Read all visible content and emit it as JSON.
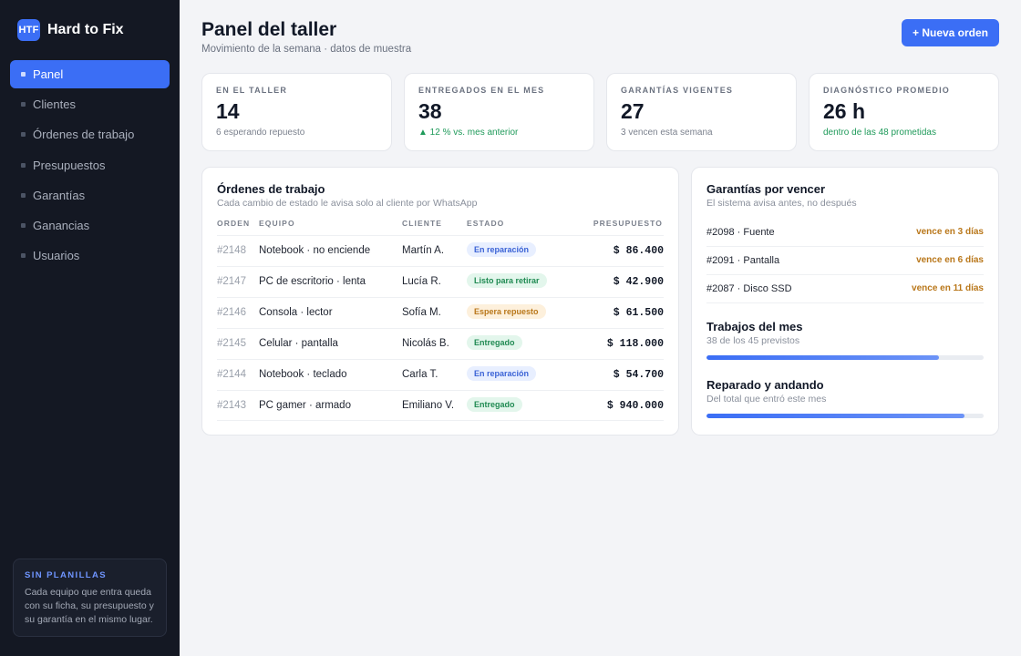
{
  "sidebar": {
    "logo": "HTF",
    "brand": "Hard to Fix",
    "items": [
      {
        "label": "Panel",
        "active": true
      },
      {
        "label": "Clientes"
      },
      {
        "label": "Órdenes de trabajo"
      },
      {
        "label": "Presupuestos"
      },
      {
        "label": "Garantías"
      },
      {
        "label": "Ganancias"
      },
      {
        "label": "Usuarios"
      }
    ],
    "promo": {
      "title": "SIN PLANILLAS",
      "text": "Cada equipo que entra queda con su ficha, su presupuesto y su garantía en el mismo lugar."
    }
  },
  "header": {
    "title": "Panel del taller",
    "subtitle": "Movimiento de la semana · datos de muestra",
    "new_order": "+ Nueva orden"
  },
  "stats": [
    {
      "label": "EN EL TALLER",
      "value": "14",
      "note": "6 esperando repuesto"
    },
    {
      "label": "ENTREGADOS EN EL MES",
      "value": "38",
      "note": "▲ 12 % vs. mes anterior"
    },
    {
      "label": "GARANTÍAS VIGENTES",
      "value": "27",
      "note": "3 vencen esta semana"
    },
    {
      "label": "DIAGNÓSTICO PROMEDIO",
      "value": "26 h",
      "note": "dentro de las 48 prometidas"
    }
  ],
  "orders": {
    "title": "Órdenes de trabajo",
    "subtitle": "Cada cambio de estado le avisa solo al cliente por WhatsApp",
    "columns": {
      "id": "ORDEN",
      "equipment": "EQUIPO",
      "client": "CLIENTE",
      "status": "ESTADO",
      "budget": "PRESUPUESTO"
    },
    "rows": [
      {
        "id": "#2148",
        "equipment": "Notebook · no enciende",
        "client": "Martín A.",
        "status": "En reparación",
        "budget": "$ 86.400"
      },
      {
        "id": "#2147",
        "equipment": "PC de escritorio · lenta",
        "client": "Lucía R.",
        "status": "Listo para retirar",
        "budget": "$ 42.900"
      },
      {
        "id": "#2146",
        "equipment": "Consola · lector",
        "client": "Sofía M.",
        "status": "Espera repuesto",
        "budget": "$ 61.500"
      },
      {
        "id": "#2145",
        "equipment": "Celular · pantalla",
        "client": "Nicolás B.",
        "status": "Entregado",
        "budget": "$ 118.000"
      },
      {
        "id": "#2144",
        "equipment": "Notebook · teclado",
        "client": "Carla T.",
        "status": "En reparación",
        "budget": "$ 54.700"
      },
      {
        "id": "#2143",
        "equipment": "PC gamer · armado",
        "client": "Emiliano V.",
        "status": "Entregado",
        "budget": "$ 940.000"
      }
    ]
  },
  "warranties": {
    "title": "Garantías por vencer",
    "subtitle": "El sistema avisa antes, no después",
    "items": [
      {
        "item": "#2098 · Fuente",
        "due": "vence en 3 días"
      },
      {
        "item": "#2091 · Pantalla",
        "due": "vence en 6 días"
      },
      {
        "item": "#2087 · Disco SSD",
        "due": "vence en 11 días"
      }
    ]
  },
  "progress": {
    "month_jobs": {
      "title": "Trabajos del mes",
      "subtitle": "38 de los 45 previstos",
      "fraction": 0.84
    },
    "repaired": {
      "title": "Reparado y andando",
      "subtitle": "Del total que entró este mes",
      "fraction": 0.93
    }
  },
  "colors": {
    "accent": "#3b6ef5",
    "sidebar": "#141823",
    "warning": "#b9771a",
    "success": "#1f9a5a"
  }
}
